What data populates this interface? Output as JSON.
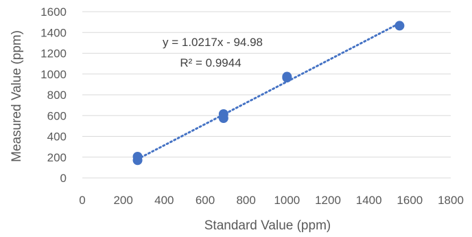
{
  "chart_data": {
    "type": "scatter",
    "title": "",
    "xlabel": "Standard Value (ppm)",
    "ylabel": "Measured Value (ppm)",
    "xlim": [
      0,
      1800
    ],
    "ylim": [
      0,
      1600
    ],
    "xticks": [
      0,
      200,
      400,
      600,
      800,
      1000,
      1200,
      1400,
      1600,
      1800
    ],
    "yticks": [
      0,
      200,
      400,
      600,
      800,
      1000,
      1200,
      1400,
      1600
    ],
    "xtick_labels": [
      "0",
      "200",
      "400",
      "600",
      "800",
      "1000",
      "1200",
      "1400",
      "1600",
      "1800"
    ],
    "ytick_labels": [
      "0",
      "200",
      "400",
      "600",
      "800",
      "1000",
      "1200",
      "1400",
      "1600"
    ],
    "grid": "horizontal",
    "legend": "none",
    "series": [
      {
        "x": [
          270,
          270,
          690,
          690,
          1000,
          1000,
          1550
        ],
        "y": [
          205,
          170,
          615,
          575,
          975,
          965,
          1465
        ],
        "color": "#4472C4"
      }
    ],
    "trendline": {
      "type": "linear",
      "slope": 1.0217,
      "intercept": -94.98,
      "x_range": [
        270,
        1550
      ],
      "style": "dotted",
      "color": "#4472C4"
    },
    "annotations": {
      "equation": "y = 1.0217x - 94.98",
      "r_squared": "R² = 0.9944"
    }
  }
}
